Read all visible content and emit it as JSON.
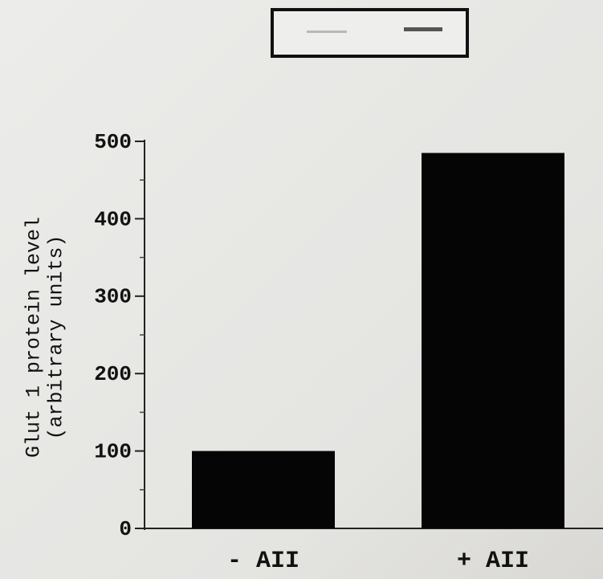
{
  "chart_data": {
    "type": "bar",
    "ylabel": [
      "Glut 1 protein level",
      "(arbitrary units)"
    ],
    "categories": [
      "- AII",
      "+ AII"
    ],
    "values": [
      100,
      485
    ],
    "color": "#050505",
    "ylim": [
      0,
      500
    ],
    "yticks": [
      0,
      100,
      200,
      300,
      400,
      500
    ],
    "minor_yticks": [
      50,
      150,
      250,
      350,
      450
    ]
  }
}
